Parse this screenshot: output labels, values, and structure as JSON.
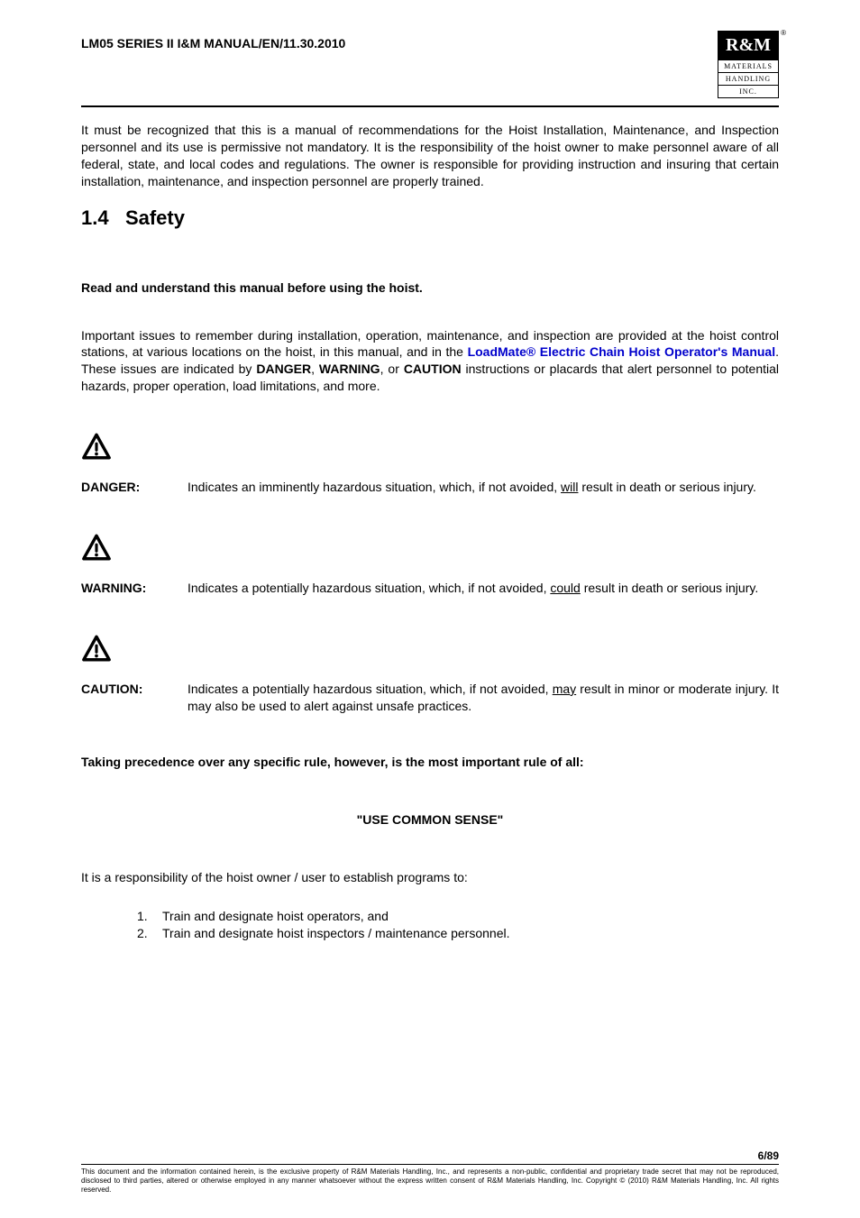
{
  "header": {
    "title": "LM05 SERIES II I&M MANUAL/EN/11.30.2010",
    "logo": {
      "top": "R&M",
      "line1": "MATERIALS",
      "line2": "HANDLING",
      "line3": "INC.",
      "reg": "®"
    }
  },
  "intro_para": "It must be recognized that this is a manual of recommendations for the Hoist Installation, Maintenance, and Inspection personnel and its use is permissive not mandatory.  It is the responsibility of the hoist owner to make personnel aware of all federal, state, and local codes and regulations.  The owner is responsible for providing instruction and insuring that certain installation, maintenance, and inspection personnel are properly trained.",
  "section": {
    "number": "1.4",
    "title": "Safety"
  },
  "read_line": "Read and understand this manual before using the hoist.",
  "important": {
    "pre": "Important issues to remember during installation, operation, maintenance, and inspection are provided at the hoist control stations, at various locations on the hoist, in this manual, and in the ",
    "link": "LoadMate® Electric Chain Hoist Operator's Manual",
    "post1": ". These issues are indicated by ",
    "b1": "DANGER",
    "sep1": ", ",
    "b2": "WARNING",
    "sep2": ", or ",
    "b3": "CAUTION",
    "post2": " instructions or placards that alert personnel to potential hazards, proper operation, load limitations, and more."
  },
  "definitions": [
    {
      "label": "DANGER:",
      "pre": "Indicates an imminently hazardous situation, which, if not avoided, ",
      "u": "will",
      "post": " result in death or serious injury."
    },
    {
      "label": "WARNING:",
      "pre": "Indicates a potentially hazardous situation, which, if not avoided, ",
      "u": "could",
      "post": " result in death or serious injury."
    },
    {
      "label": "CAUTION:",
      "pre": "Indicates a potentially hazardous situation, which, if not avoided, ",
      "u": "may",
      "post": " result in minor or moderate injury.  It may also be used to alert against unsafe practices."
    }
  ],
  "precedence": "Taking precedence over any specific rule, however, is the most important rule of all:",
  "common_sense": "\"USE COMMON SENSE\"",
  "responsibility": "It is a responsibility of the hoist owner / user to establish programs to:",
  "list": [
    "Train and designate hoist operators, and",
    "Train and designate hoist inspectors / maintenance personnel."
  ],
  "footer": {
    "page": "6/89",
    "line1": "This document and the information contained herein, is the exclusive property of R&M Materials Handling, Inc., and represents a non-public, confidential and proprietary trade secret that may not be reproduced, disclosed to third parties, altered or otherwise employed in any manner whatsoever without the express written consent of R&M Materials Handling, Inc. Copyright © (2010) R&M Materials Handling, Inc.  All rights reserved."
  },
  "icon": {
    "stroke": "#000000",
    "size": 34
  }
}
